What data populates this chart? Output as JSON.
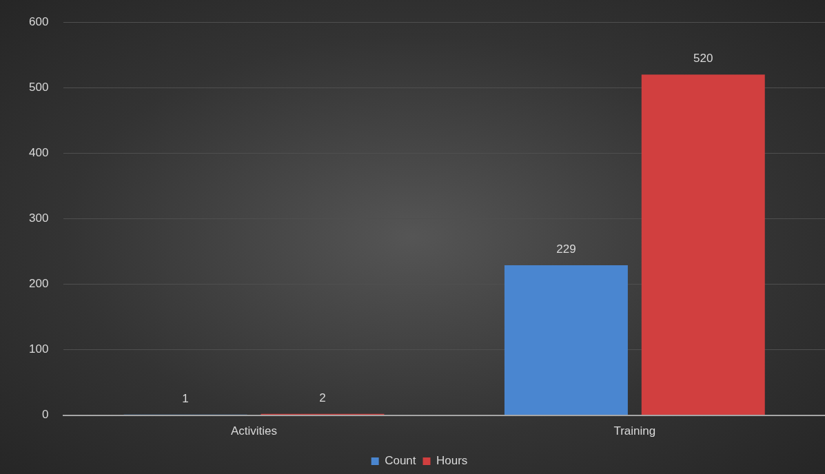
{
  "chart_data": {
    "type": "bar",
    "categories": [
      "Activities",
      "Training"
    ],
    "series": [
      {
        "name": "Count",
        "color": "#4a86d0",
        "values": [
          1,
          229
        ]
      },
      {
        "name": "Hours",
        "color": "#d13f3f",
        "values": [
          2,
          520
        ]
      }
    ],
    "ylim": [
      0,
      600
    ],
    "yticks": [
      0,
      100,
      200,
      300,
      400,
      500,
      600
    ],
    "grid": "y",
    "legend": "bottom",
    "data_labels": true
  }
}
